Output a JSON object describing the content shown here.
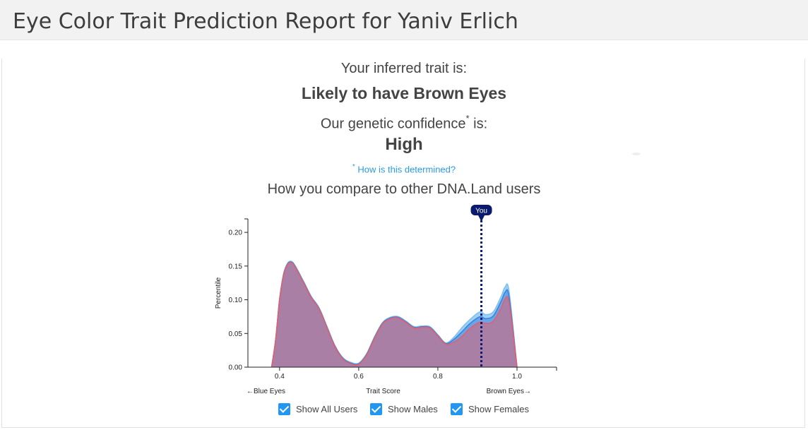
{
  "header": {
    "title": "Eye Color Trait Prediction Report for Yaniv Erlich"
  },
  "result": {
    "inferred_label": "Your inferred trait is:",
    "trait": "Likely to have Brown Eyes",
    "confidence_prefix": "Our genetic confidence",
    "confidence_marker": "*",
    "confidence_suffix": " is:",
    "confidence": "High",
    "how_marker": "*",
    "how_link": "How is this determined?",
    "compare_heading": "How you compare to other DNA.Land users"
  },
  "chart_data": {
    "type": "area",
    "xlabel": "Trait Score",
    "ylabel": "Percentile",
    "x_left_label": "←Blue Eyes",
    "x_right_label": "Brown Eyes→",
    "xlim": [
      0.32,
      1.1
    ],
    "ylim": [
      0,
      0.22
    ],
    "x_ticks": [
      "0.4",
      "0.6",
      "0.8",
      "1.0"
    ],
    "x_tick_values": [
      0.4,
      0.6,
      0.8,
      1.0
    ],
    "y_ticks": [
      "0.00",
      "0.05",
      "0.10",
      "0.15",
      "0.20"
    ],
    "y_tick_values": [
      0,
      0.05,
      0.1,
      0.15,
      0.2
    ],
    "you_label": "You",
    "you_value": 0.91,
    "colors": {
      "all": "#3b82e0",
      "males": "#7ec0ef",
      "females": "#e06070",
      "marker": "#0a1a6e"
    },
    "series": [
      {
        "name": "Show Males",
        "x": [
          0.38,
          0.39,
          0.4,
          0.41,
          0.42,
          0.43,
          0.44,
          0.46,
          0.48,
          0.5,
          0.52,
          0.54,
          0.56,
          0.58,
          0.6,
          0.62,
          0.64,
          0.66,
          0.68,
          0.7,
          0.72,
          0.74,
          0.76,
          0.78,
          0.8,
          0.82,
          0.84,
          0.86,
          0.88,
          0.9,
          0.91,
          0.92,
          0.94,
          0.96,
          0.97,
          0.98,
          1.0
        ],
        "y": [
          0,
          0.04,
          0.1,
          0.138,
          0.154,
          0.157,
          0.15,
          0.128,
          0.105,
          0.088,
          0.06,
          0.032,
          0.014,
          0.007,
          0.006,
          0.02,
          0.045,
          0.066,
          0.074,
          0.075,
          0.068,
          0.06,
          0.061,
          0.06,
          0.048,
          0.036,
          0.044,
          0.058,
          0.07,
          0.08,
          0.082,
          0.078,
          0.082,
          0.105,
          0.119,
          0.112,
          0
        ]
      },
      {
        "name": "Show All Users",
        "x": [
          0.38,
          0.39,
          0.4,
          0.41,
          0.42,
          0.43,
          0.44,
          0.46,
          0.48,
          0.5,
          0.52,
          0.54,
          0.56,
          0.58,
          0.6,
          0.62,
          0.64,
          0.66,
          0.68,
          0.7,
          0.72,
          0.74,
          0.76,
          0.78,
          0.8,
          0.82,
          0.84,
          0.86,
          0.88,
          0.9,
          0.91,
          0.92,
          0.94,
          0.96,
          0.97,
          0.98,
          1.0
        ],
        "y": [
          0,
          0.04,
          0.1,
          0.137,
          0.153,
          0.156,
          0.149,
          0.127,
          0.104,
          0.087,
          0.059,
          0.031,
          0.013,
          0.006,
          0.005,
          0.019,
          0.044,
          0.065,
          0.073,
          0.074,
          0.067,
          0.059,
          0.06,
          0.059,
          0.047,
          0.035,
          0.041,
          0.052,
          0.064,
          0.073,
          0.075,
          0.072,
          0.076,
          0.098,
          0.111,
          0.104,
          0
        ]
      },
      {
        "name": "Show Females",
        "x": [
          0.38,
          0.39,
          0.4,
          0.41,
          0.42,
          0.43,
          0.44,
          0.46,
          0.48,
          0.5,
          0.52,
          0.54,
          0.56,
          0.58,
          0.6,
          0.62,
          0.64,
          0.66,
          0.68,
          0.7,
          0.72,
          0.74,
          0.76,
          0.78,
          0.8,
          0.82,
          0.84,
          0.86,
          0.88,
          0.9,
          0.91,
          0.92,
          0.94,
          0.96,
          0.97,
          0.98,
          1.0
        ],
        "y": [
          0,
          0.04,
          0.1,
          0.136,
          0.152,
          0.155,
          0.148,
          0.126,
          0.103,
          0.086,
          0.058,
          0.03,
          0.012,
          0.005,
          0.004,
          0.018,
          0.043,
          0.064,
          0.072,
          0.073,
          0.066,
          0.058,
          0.059,
          0.058,
          0.046,
          0.034,
          0.037,
          0.045,
          0.057,
          0.065,
          0.067,
          0.065,
          0.068,
          0.088,
          0.101,
          0.095,
          0
        ]
      }
    ]
  },
  "filters": [
    {
      "label": "Show All Users",
      "checked": true
    },
    {
      "label": "Show Males",
      "checked": true
    },
    {
      "label": "Show Females",
      "checked": true
    }
  ]
}
